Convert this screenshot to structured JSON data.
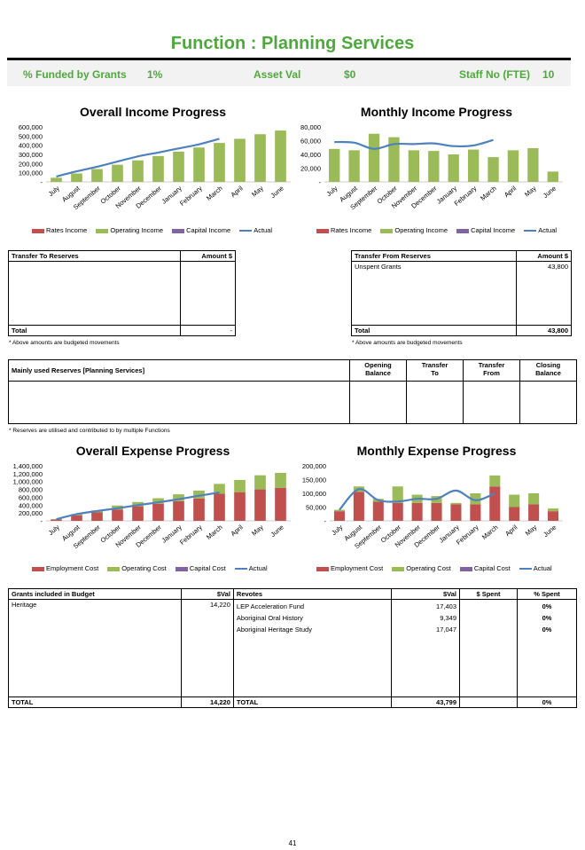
{
  "page": {
    "title": "Function : Planning Services",
    "page_number": "41"
  },
  "header": {
    "funded_label": "% Funded by Grants",
    "funded_value": "1%",
    "asset_label": "Asset Val",
    "asset_value": "$0",
    "staff_label": "Staff No (FTE)",
    "staff_value": "10"
  },
  "colors": {
    "rates": "#c0504d",
    "operating": "#9bbb59",
    "capital": "#8064a2",
    "actual": "#4f81bd",
    "title_green": "#4fa83d"
  },
  "income_legend": [
    "Rates Income",
    "Operating Income",
    "Capital Income",
    "Actual"
  ],
  "expense_legend": [
    "Employment Cost",
    "Operating Cost",
    "Capital Cost",
    "Actual"
  ],
  "chart_data": [
    {
      "type": "bar",
      "title": "Overall Income Progress",
      "categories": [
        "July",
        "August",
        "September",
        "October",
        "November",
        "December",
        "January",
        "February",
        "March",
        "April",
        "May",
        "June"
      ],
      "ylim": [
        0,
        600000
      ],
      "yticks": [
        "-",
        "100,000",
        "200,000",
        "300,000",
        "400,000",
        "500,000",
        "600,000"
      ],
      "series": [
        {
          "name": "Rates Income",
          "values": [
            0,
            0,
            0,
            0,
            0,
            0,
            0,
            0,
            0,
            0,
            0,
            0
          ]
        },
        {
          "name": "Operating Income",
          "values": [
            45000,
            92000,
            140000,
            187000,
            235000,
            282000,
            330000,
            375000,
            425000,
            470000,
            520000,
            560000
          ]
        },
        {
          "name": "Capital Income",
          "values": [
            0,
            0,
            0,
            0,
            0,
            0,
            0,
            0,
            0,
            0,
            0,
            0
          ]
        },
        {
          "name": "Actual",
          "values": [
            58000,
            115000,
            165000,
            222000,
            278000,
            320000,
            365000,
            410000,
            470000,
            null,
            null,
            null
          ]
        }
      ]
    },
    {
      "type": "bar",
      "title": "Monthly Income Progress",
      "categories": [
        "July",
        "August",
        "September",
        "October",
        "November",
        "December",
        "January",
        "February",
        "March",
        "April",
        "May",
        "June"
      ],
      "ylim": [
        0,
        80000
      ],
      "yticks": [
        "-",
        "20,000",
        "40,000",
        "60,000",
        "80,000"
      ],
      "series": [
        {
          "name": "Rates Income",
          "values": [
            0,
            0,
            0,
            0,
            0,
            0,
            0,
            0,
            0,
            0,
            0,
            0
          ]
        },
        {
          "name": "Operating Income",
          "values": [
            48000,
            46000,
            70000,
            65000,
            46000,
            45000,
            40000,
            47000,
            36000,
            46000,
            49000,
            15000
          ]
        },
        {
          "name": "Capital Income",
          "values": [
            0,
            0,
            0,
            0,
            0,
            0,
            0,
            0,
            0,
            0,
            0,
            0
          ]
        },
        {
          "name": "Actual",
          "values": [
            58000,
            57000,
            48000,
            55000,
            55000,
            56000,
            52000,
            53000,
            61000,
            null,
            null,
            null
          ]
        }
      ]
    },
    {
      "type": "bar",
      "title": "Overall Expense Progress",
      "categories": [
        "July",
        "August",
        "September",
        "October",
        "November",
        "December",
        "January",
        "February",
        "March",
        "April",
        "May",
        "June"
      ],
      "ylim": [
        0,
        1400000
      ],
      "yticks": [
        "-",
        "200,000",
        "400,000",
        "600,000",
        "800,000",
        "1,000,000",
        "1,200,000",
        "1,400,000"
      ],
      "series": [
        {
          "name": "Employment Cost",
          "values": [
            35000,
            140000,
            215000,
            290000,
            370000,
            435000,
            500000,
            570000,
            690000,
            730000,
            800000,
            840000
          ]
        },
        {
          "name": "Operating Cost",
          "values": [
            5000,
            30000,
            50000,
            100000,
            110000,
            140000,
            175000,
            200000,
            250000,
            310000,
            360000,
            380000
          ]
        },
        {
          "name": "Capital Cost",
          "values": [
            0,
            0,
            0,
            0,
            0,
            0,
            0,
            0,
            0,
            0,
            0,
            0
          ]
        },
        {
          "name": "Actual",
          "values": [
            40000,
            170000,
            250000,
            320000,
            400000,
            470000,
            550000,
            640000,
            720000,
            null,
            null,
            null
          ]
        }
      ]
    },
    {
      "type": "bar",
      "title": "Monthly Expense Progress",
      "categories": [
        "July",
        "August",
        "September",
        "October",
        "November",
        "December",
        "January",
        "February",
        "March",
        "April",
        "May",
        "June"
      ],
      "ylim": [
        0,
        200000
      ],
      "yticks": [
        "-",
        "50,000",
        "100,000",
        "150,000",
        "200,000"
      ],
      "series": [
        {
          "name": "Employment Cost",
          "values": [
            35000,
            105000,
            70000,
            65000,
            65000,
            65000,
            60000,
            60000,
            125000,
            50000,
            60000,
            35000
          ]
        },
        {
          "name": "Operating Cost",
          "values": [
            5000,
            20000,
            10000,
            60000,
            30000,
            25000,
            5000,
            40000,
            40000,
            45000,
            40000,
            10000
          ]
        },
        {
          "name": "Capital Cost",
          "values": [
            0,
            0,
            0,
            0,
            0,
            0,
            0,
            0,
            0,
            0,
            0,
            0
          ]
        },
        {
          "name": "Actual",
          "values": [
            40000,
            115000,
            75000,
            70000,
            80000,
            80000,
            110000,
            75000,
            100000,
            null,
            null,
            null
          ]
        }
      ]
    }
  ],
  "transfer_to": {
    "header": "Transfer To Reserves",
    "amount_header": "Amount $",
    "total_label": "Total",
    "total_value": "-",
    "note": "* Above amounts are budgeted movements"
  },
  "transfer_from": {
    "header": "Transfer From Reserves",
    "amount_header": "Amount $",
    "rows": [
      {
        "label": "Unspent Grants",
        "value": "43,800"
      }
    ],
    "total_label": "Total",
    "total_value": "43,800",
    "note": "* Above amounts are budgeted movements"
  },
  "reserves": {
    "header": "Mainly used Reserves [Planning Services]",
    "col1a": "Opening",
    "col1b": "Balance",
    "col2a": "Transfer",
    "col2b": "To",
    "col3a": "Transfer",
    "col3b": "From",
    "col4a": "Closing",
    "col4b": "Balance",
    "note": "* Reserves are utilised and contributed to by multiple Functions"
  },
  "grants": {
    "header": "Grants included in Budget",
    "val_header": "$Val",
    "rows": [
      {
        "label": "Heritage",
        "value": "14,220"
      }
    ],
    "total_label": "TOTAL",
    "total_value": "14,220"
  },
  "revotes": {
    "header": "Revotes",
    "val_header": "$Val",
    "spent_header": "$ Spent",
    "pct_header": "% Spent",
    "rows": [
      {
        "label": "LEP Acceleration Fund",
        "value": "17,403",
        "pct": "0%"
      },
      {
        "label": "Aboriginal Oral History",
        "value": "9,349",
        "pct": "0%"
      },
      {
        "label": "Aboriginal Heritage Study",
        "value": "17,047",
        "pct": "0%"
      }
    ],
    "total_label": "TOTAL",
    "total_value": "43,799",
    "total_pct": "0%"
  }
}
